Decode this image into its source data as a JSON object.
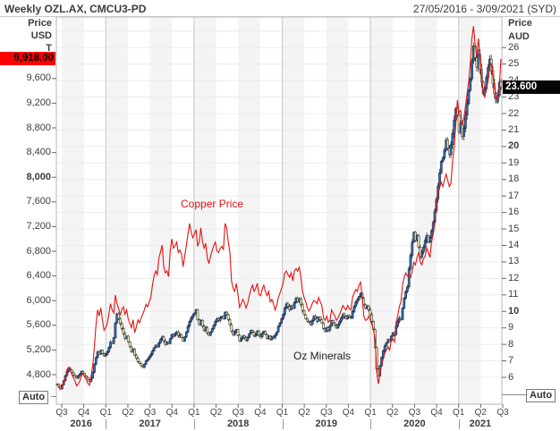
{
  "header": {
    "title": "Weekly OZL.AX, CMCU3-PD",
    "date_range": "27/05/2016 - 3/09/2021 (SYD)"
  },
  "left_axis": {
    "header_lines": [
      "Price",
      "USD",
      "T"
    ],
    "last_price": "9,918.00",
    "last_price_value": 9918,
    "last_price_bg": "#ff0000",
    "tick_labels": [
      "9,600",
      "9,200",
      "8,800",
      "8,400",
      "8,000",
      "7,600",
      "7,200",
      "6,800",
      "6,400",
      "6,000",
      "5,600",
      "5,200",
      "4,800"
    ],
    "tick_values": [
      9600,
      9200,
      8800,
      8400,
      8000,
      7600,
      7200,
      6800,
      6400,
      6000,
      5600,
      5200,
      4800
    ],
    "bold_values": [
      8000
    ]
  },
  "right_axis": {
    "header_lines": [
      "Price",
      "AUD"
    ],
    "last_price": "23.600",
    "last_price_value": 23.6,
    "last_price_bg": "#050505",
    "tick_values": [
      26,
      25,
      24,
      23,
      22,
      21,
      20,
      19,
      18,
      17,
      16,
      15,
      14,
      13,
      12,
      11,
      10,
      9,
      8,
      7,
      6
    ],
    "bold_values": [
      20,
      10
    ]
  },
  "x_axis": {
    "quarter_labels": [
      "Q3",
      "Q4",
      "Q1",
      "Q2",
      "Q3",
      "Q4",
      "Q1",
      "Q2",
      "Q3",
      "Q4",
      "Q1",
      "Q2",
      "Q3",
      "Q4",
      "Q1",
      "Q2",
      "Q3",
      "Q4",
      "Q1",
      "Q2",
      "Q3"
    ],
    "year_labels": [
      "2016",
      "2017",
      "2018",
      "2019",
      "2020",
      "2021"
    ]
  },
  "legend": {
    "copper": "Copper Price",
    "ozl": "Oz Minerals"
  },
  "buttons": {
    "auto_left": "Auto",
    "auto_right": "Auto"
  },
  "colors": {
    "copper_line": "#e51212",
    "candle_up": "#2e6cb8",
    "candle_down": "#efe9a8",
    "candle_outline": "#15151f",
    "band": "#f4f4f4",
    "grid": "#ececec",
    "year_line": "#cdcdcd",
    "border": "#b5b5b5"
  },
  "chart_data": {
    "type": "line+candlestick",
    "x_start": "2016-05-27",
    "x_end": "2021-09-03",
    "interval": "weekly",
    "left_axis_ticks": [
      4800,
      5200,
      5600,
      6000,
      6400,
      6800,
      7200,
      7600,
      8000,
      8400,
      8800,
      9200,
      9600
    ],
    "right_axis_ticks": [
      6,
      7,
      8,
      9,
      10,
      11,
      12,
      13,
      14,
      15,
      16,
      17,
      18,
      19,
      20,
      21,
      22,
      23,
      24,
      25,
      26
    ],
    "series": [
      {
        "name": "Copper Price",
        "symbol": "CMCU3-PD",
        "type": "line",
        "axis": "left",
        "unit": "USD",
        "last": 9918.0,
        "weekly_close": [
          4640,
          4590,
          4560,
          4620,
          4680,
          4750,
          4880,
          4920,
          4890,
          4810,
          4750,
          4700,
          4620,
          4650,
          4700,
          4780,
          4820,
          4760,
          4720,
          4660,
          4630,
          4780,
          4950,
          5250,
          5600,
          5850,
          5750,
          5880,
          5690,
          5520,
          5560,
          5630,
          5780,
          5950,
          5850,
          5800,
          6090,
          5950,
          5880,
          5770,
          5850,
          5900,
          5780,
          5850,
          5700,
          5630,
          5560,
          5690,
          5480,
          5570,
          5690,
          5640,
          5720,
          5780,
          5850,
          5940,
          5900,
          5980,
          6050,
          6250,
          6400,
          6480,
          6420,
          6690,
          6790,
          6900,
          6550,
          6450,
          6480,
          6390,
          6800,
          7000,
          6850,
          6890,
          6950,
          6780,
          6820,
          6750,
          6550,
          6720,
          6890,
          7080,
          7250,
          7110,
          7020,
          7080,
          7150,
          6880,
          6950,
          7180,
          6960,
          6850,
          6930,
          6690,
          6600,
          6720,
          6810,
          6890,
          6950,
          6800,
          6780,
          6850,
          6880,
          6830,
          7250,
          7180,
          6950,
          6780,
          6320,
          6200,
          6150,
          6280,
          6100,
          5890,
          5950,
          6020,
          5970,
          5880,
          5950,
          6080,
          6180,
          6250,
          6150,
          6200,
          6280,
          6100,
          6080,
          6180,
          6250,
          6150,
          6080,
          6150,
          5980,
          6020,
          5950,
          5850,
          5920,
          6050,
          6120,
          6200,
          6280,
          6450,
          6480,
          6420,
          6380,
          6450,
          6320,
          6480,
          6520,
          6480,
          6540,
          6380,
          6150,
          6050,
          5980,
          5880,
          5830,
          5880,
          5950,
          6000,
          5990,
          5950,
          6050,
          5980,
          5920,
          5720,
          5680,
          5750,
          5650,
          5680,
          5850,
          5800,
          5750,
          5680,
          5720,
          5780,
          5850,
          5920,
          5880,
          5850,
          5920,
          5870,
          5850,
          6050,
          6120,
          6180,
          6150,
          6250,
          6300,
          6050,
          5750,
          5680,
          5690,
          5750,
          5680,
          5620,
          5520,
          5380,
          4850,
          4650,
          4800,
          4950,
          5050,
          5150,
          5200,
          5250,
          5200,
          5350,
          5380,
          5330,
          5650,
          5750,
          5900,
          5980,
          6250,
          6380,
          6450,
          6400,
          6420,
          6380,
          6480,
          6620,
          6580,
          6700,
          6780,
          6620,
          6580,
          6680,
          6720,
          6850,
          6780,
          6700,
          6950,
          7080,
          7250,
          7580,
          7750,
          7850,
          7920,
          7850,
          7950,
          8050,
          7950,
          7850,
          7900,
          8250,
          8480,
          8850,
          9250,
          9050,
          9080,
          8850,
          8950,
          9150,
          9350,
          9550,
          9850,
          10250,
          10450,
          10150,
          9950,
          10250,
          9950,
          9650,
          9350,
          9300,
          9450,
          9550,
          9780,
          9850,
          9650,
          9450,
          9250,
          9380,
          9480,
          9918
        ]
      },
      {
        "name": "Oz Minerals",
        "symbol": "OZL.AX",
        "type": "candlestick",
        "axis": "right",
        "unit": "AUD",
        "last": 23.6,
        "weekly_close": [
          5.6,
          5.45,
          5.3,
          5.55,
          5.8,
          6.1,
          6.35,
          6.55,
          6.45,
          6.3,
          6.15,
          6.05,
          5.95,
          6.1,
          6.2,
          6.35,
          6.25,
          6.1,
          6.0,
          5.85,
          5.75,
          5.95,
          6.3,
          6.8,
          7.2,
          7.55,
          7.4,
          7.65,
          7.45,
          7.3,
          7.4,
          7.55,
          7.8,
          8.15,
          8.05,
          8.4,
          9.3,
          9.85,
          9.55,
          9.25,
          8.95,
          8.65,
          8.35,
          8.5,
          8.15,
          7.85,
          7.55,
          7.7,
          7.35,
          7.15,
          6.95,
          6.85,
          6.7,
          6.6,
          6.8,
          7.0,
          7.1,
          7.25,
          7.4,
          7.6,
          7.8,
          7.95,
          7.85,
          8.1,
          8.3,
          8.45,
          8.2,
          8.0,
          8.15,
          8.05,
          8.35,
          8.6,
          8.5,
          8.65,
          8.75,
          8.5,
          8.6,
          8.4,
          8.2,
          8.45,
          8.75,
          9.1,
          9.4,
          9.6,
          9.75,
          9.9,
          10.1,
          9.5,
          9.2,
          9.45,
          9.1,
          8.85,
          9.0,
          8.7,
          8.55,
          8.75,
          8.95,
          9.15,
          9.4,
          9.55,
          9.45,
          9.6,
          9.7,
          9.55,
          9.95,
          9.8,
          9.5,
          9.2,
          8.8,
          8.6,
          8.75,
          8.9,
          8.55,
          8.2,
          8.35,
          8.5,
          8.4,
          8.25,
          8.4,
          8.65,
          8.85,
          8.75,
          8.5,
          8.6,
          8.8,
          8.55,
          8.45,
          8.65,
          8.8,
          8.6,
          8.35,
          8.5,
          8.3,
          8.45,
          8.4,
          8.55,
          8.75,
          9.1,
          9.3,
          9.55,
          9.8,
          10.2,
          10.45,
          10.3,
          10.1,
          10.35,
          10.2,
          10.55,
          10.8,
          10.6,
          10.75,
          10.4,
          10.05,
          9.8,
          9.55,
          9.4,
          9.35,
          9.2,
          9.45,
          9.7,
          9.6,
          9.4,
          9.65,
          9.5,
          9.3,
          8.95,
          8.8,
          9.0,
          8.85,
          9.1,
          9.45,
          9.3,
          9.15,
          9.0,
          9.2,
          9.4,
          9.6,
          9.8,
          9.7,
          9.55,
          9.75,
          9.65,
          9.6,
          10.0,
          10.3,
          10.55,
          10.7,
          10.9,
          11.1,
          10.8,
          10.4,
          10.2,
          10.3,
          10.1,
          9.8,
          9.4,
          8.9,
          7.8,
          6.5,
          6.1,
          6.7,
          7.2,
          7.6,
          7.9,
          8.1,
          8.3,
          8.2,
          8.5,
          8.7,
          8.6,
          9.1,
          9.4,
          9.6,
          9.5,
          10.2,
          10.8,
          11.2,
          11.5,
          12.6,
          13.4,
          14.2,
          14.8,
          14.3,
          14.6,
          13.9,
          13.3,
          13.6,
          13.9,
          14.3,
          14.6,
          14.2,
          14.5,
          14.9,
          15.4,
          16.1,
          16.8,
          17.6,
          18.4,
          19.1,
          19.3,
          19.8,
          20.4,
          19.9,
          19.5,
          20.1,
          20.8,
          21.6,
          22.3,
          21.9,
          20.9,
          21.4,
          20.6,
          21.1,
          21.9,
          22.6,
          23.4,
          24.1,
          25.2,
          26.1,
          25.4,
          24.8,
          25.6,
          24.7,
          23.9,
          23.2,
          23.5,
          24.2,
          24.8,
          25.3,
          24.6,
          23.8,
          23.2,
          22.7,
          23.1,
          23.9,
          23.6
        ]
      }
    ]
  }
}
